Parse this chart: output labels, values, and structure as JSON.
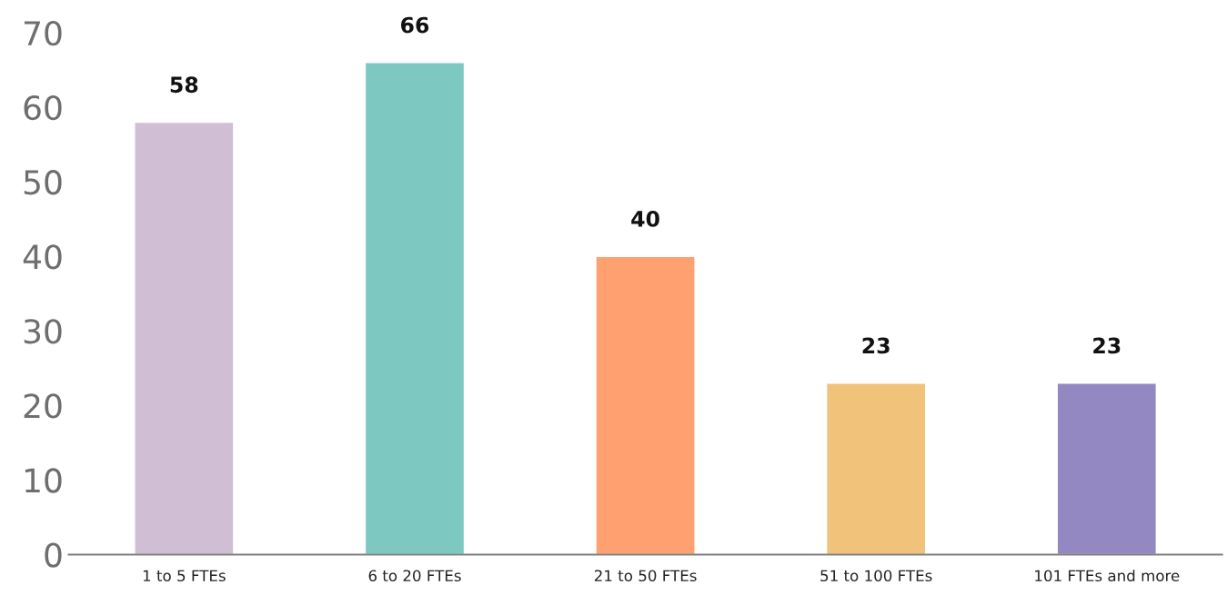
{
  "chart_data": {
    "type": "bar",
    "categories": [
      "1 to 5 FTEs",
      "6 to 20 FTEs",
      "21 to 50 FTEs",
      "51 to 100 FTEs",
      "101 FTEs and more"
    ],
    "values": [
      58,
      66,
      40,
      23,
      23
    ],
    "colors": [
      "#d0bfd4",
      "#7ec8c2",
      "#ffa070",
      "#f0c27a",
      "#9388c2"
    ],
    "ylim": [
      0,
      70
    ],
    "yticks": [
      0,
      10,
      20,
      30,
      40,
      50,
      60,
      70
    ],
    "data_labels": true,
    "grid": false,
    "legend": false
  }
}
